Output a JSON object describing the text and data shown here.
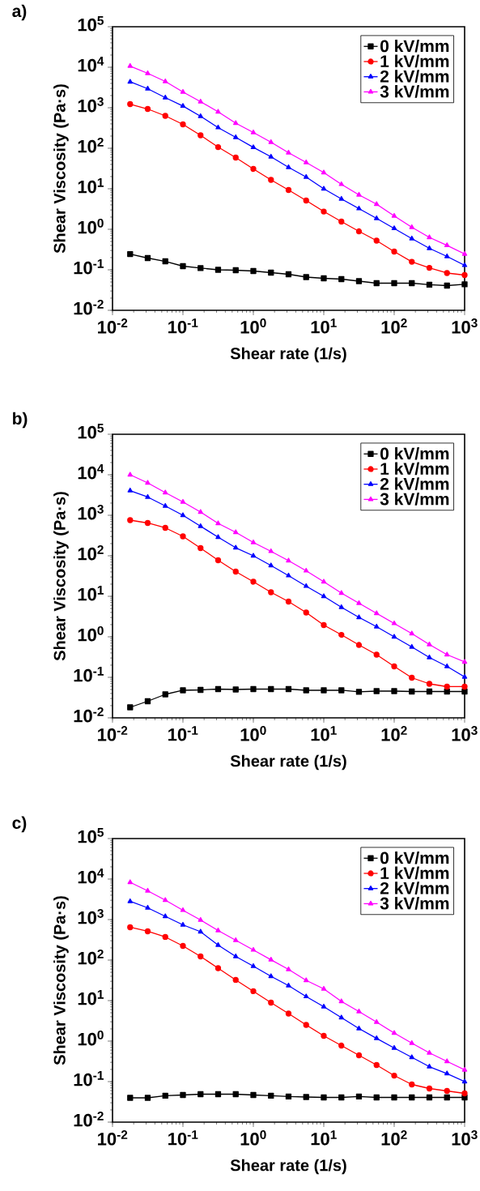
{
  "chart_data": [
    {
      "type": "line",
      "title": "a)",
      "xlabel": "Shear rate (1/s)",
      "ylabel": "Shear Viscosity (Pa·s)",
      "log": "xy",
      "legend": "top right",
      "x": [
        0.0178,
        0.0316,
        0.0562,
        0.1,
        0.178,
        0.316,
        0.562,
        1,
        1.78,
        3.16,
        5.62,
        10,
        17.8,
        31.6,
        56.2,
        100,
        178,
        316,
        562,
        1000
      ],
      "xlim": [
        0.01,
        1000
      ],
      "ylim": [
        0.01,
        100000
      ],
      "xticks": [
        {
          "value": 0.01,
          "label": "10$^{-2}$"
        },
        {
          "value": 0.1,
          "label": "10$^{-1}$"
        },
        {
          "value": 1,
          "label": "10$^{0}$"
        },
        {
          "value": 10,
          "label": "10$^{1}$"
        },
        {
          "value": 100,
          "label": "10$^{2}$"
        },
        {
          "value": 1000,
          "label": "10$^{3}$"
        }
      ],
      "yticks": [
        {
          "value": 0.01,
          "label": "10$^{-2}$"
        },
        {
          "value": 0.1,
          "label": "10$^{-1}$"
        },
        {
          "value": 1,
          "label": "10$^{0}$"
        },
        {
          "value": 10,
          "label": "10$^{1}$"
        },
        {
          "value": 100,
          "label": "10$^{2}$"
        },
        {
          "value": 1000,
          "label": "10$^{3}$"
        },
        {
          "value": 10000,
          "label": "10$^{4}$"
        },
        {
          "value": 100000,
          "label": "10$^{5}$"
        }
      ],
      "series": [
        {
          "name": "0 kV/mm",
          "color": "#000000",
          "marker": "square",
          "values": [
            0.245,
            0.195,
            0.162,
            0.123,
            0.11,
            0.1,
            0.0977,
            0.0933,
            0.0851,
            0.0776,
            0.0661,
            0.0617,
            0.0589,
            0.0525,
            0.0468,
            0.0468,
            0.0468,
            0.0427,
            0.0407,
            0.0437
          ]
        },
        {
          "name": "1 kV/mm",
          "color": "#ff0000",
          "marker": "circle",
          "values": [
            1230,
            933,
            631,
            389,
            209,
            107,
            58.9,
            30.9,
            16.6,
            9.33,
            5.13,
            2.75,
            1.55,
            0.891,
            0.525,
            0.282,
            0.158,
            0.112,
            0.0832,
            0.0741
          ]
        },
        {
          "name": "2 kV/mm",
          "color": "#0000ff",
          "marker": "triangle",
          "values": [
            4370,
            2950,
            1780,
            1100,
            617,
            324,
            186,
            105,
            61.7,
            33.9,
            19.5,
            10,
            5.62,
            3.24,
            1.86,
            1.05,
            0.589,
            0.339,
            0.214,
            0.129
          ]
        },
        {
          "name": "3 kV/mm",
          "color": "#ff00ff",
          "marker": "triangle",
          "values": [
            10700,
            7080,
            4470,
            2450,
            1410,
            794,
            417,
            245,
            141,
            77.6,
            44.7,
            25.1,
            12.9,
            7.08,
            4.17,
            2.14,
            1.12,
            0.63,
            0.4,
            0.245
          ]
        }
      ]
    },
    {
      "type": "line",
      "title": "b)",
      "xlabel": "Shear rate (1/s)",
      "ylabel": "Shear Viscosity (Pa·s)",
      "log": "xy",
      "legend": "top right",
      "x": [
        0.0178,
        0.0316,
        0.0562,
        0.1,
        0.178,
        0.316,
        0.562,
        1,
        1.78,
        3.16,
        5.62,
        10,
        17.8,
        31.6,
        56.2,
        100,
        178,
        316,
        562,
        1000
      ],
      "xlim": [
        0.01,
        1000
      ],
      "ylim": [
        0.01,
        100000
      ],
      "xticks": [
        {
          "value": 0.01,
          "label": "10$^{-2}$"
        },
        {
          "value": 0.1,
          "label": "10$^{-1}$"
        },
        {
          "value": 1,
          "label": "10$^{0}$"
        },
        {
          "value": 10,
          "label": "10$^{1}$"
        },
        {
          "value": 100,
          "label": "10$^{2}$"
        },
        {
          "value": 1000,
          "label": "10$^{3}$"
        }
      ],
      "yticks": [
        {
          "value": 0.01,
          "label": "10$^{-2}$"
        },
        {
          "value": 0.1,
          "label": "10$^{-1}$"
        },
        {
          "value": 1,
          "label": "10$^{0}$"
        },
        {
          "value": 10,
          "label": "10$^{1}$"
        },
        {
          "value": 100,
          "label": "10$^{2}$"
        },
        {
          "value": 1000,
          "label": "10$^{3}$"
        },
        {
          "value": 10000,
          "label": "10$^{4}$"
        },
        {
          "value": 100000,
          "label": "10$^{5}$"
        }
      ],
      "series": [
        {
          "name": "0 kV/mm",
          "color": "#000000",
          "marker": "square",
          "values": [
            0.0182,
            0.0257,
            0.038,
            0.0479,
            0.049,
            0.0513,
            0.0501,
            0.0513,
            0.0513,
            0.0513,
            0.0479,
            0.0479,
            0.0479,
            0.0437,
            0.0457,
            0.0457,
            0.0447,
            0.0447,
            0.0447,
            0.0447
          ]
        },
        {
          "name": "1 kV/mm",
          "color": "#ff0000",
          "marker": "circle",
          "values": [
            759,
            646,
            490,
            302,
            155,
            77.6,
            40.7,
            22.9,
            12.6,
            7.41,
            3.98,
            1.95,
            1.12,
            0.631,
            0.363,
            0.186,
            0.0977,
            0.0692,
            0.0589,
            0.0589
          ]
        },
        {
          "name": "2 kV/mm",
          "color": "#0000ff",
          "marker": "triangle",
          "values": [
            4070,
            2820,
            1700,
            1000,
            537,
            288,
            158,
            100,
            57.5,
            32.4,
            17.8,
            10,
            5.37,
            3.02,
            1.78,
            1.0,
            0.562,
            0.309,
            0.186,
            0.102
          ]
        },
        {
          "name": "3 kV/mm",
          "color": "#ff00ff",
          "marker": "triangle",
          "values": [
            10000,
            6310,
            3630,
            2140,
            1200,
            631,
            380,
            214,
            129,
            75.9,
            42.7,
            22.9,
            12,
            6.76,
            3.8,
            2.14,
            1.2,
            0.646,
            0.363,
            0.24
          ]
        }
      ]
    },
    {
      "type": "line",
      "title": "c)",
      "xlabel": "Shear rate (1/s)",
      "ylabel": "Shear Viscosity (Pa·s)",
      "log": "xy",
      "legend": "top right",
      "x": [
        0.0178,
        0.0316,
        0.0562,
        0.1,
        0.178,
        0.316,
        0.562,
        1,
        1.78,
        3.16,
        5.62,
        10,
        17.8,
        31.6,
        56.2,
        100,
        178,
        316,
        562,
        1000
      ],
      "xlim": [
        0.01,
        1000
      ],
      "ylim": [
        0.01,
        100000
      ],
      "xticks": [
        {
          "value": 0.01,
          "label": "10$^{-2}$"
        },
        {
          "value": 0.1,
          "label": "10$^{-1}$"
        },
        {
          "value": 1,
          "label": "10$^{0}$"
        },
        {
          "value": 10,
          "label": "10$^{1}$"
        },
        {
          "value": 100,
          "label": "10$^{2}$"
        },
        {
          "value": 1000,
          "label": "10$^{3}$"
        }
      ],
      "yticks": [
        {
          "value": 0.01,
          "label": "10$^{-2}$"
        },
        {
          "value": 0.1,
          "label": "10$^{-1}$"
        },
        {
          "value": 1,
          "label": "10$^{0}$"
        },
        {
          "value": 10,
          "label": "10$^{1}$"
        },
        {
          "value": 100,
          "label": "10$^{2}$"
        },
        {
          "value": 1000,
          "label": "10$^{3}$"
        },
        {
          "value": 10000,
          "label": "10$^{4}$"
        },
        {
          "value": 100000,
          "label": "10$^{5}$"
        }
      ],
      "series": [
        {
          "name": "0 kV/mm",
          "color": "#000000",
          "marker": "square",
          "values": [
            0.0398,
            0.0398,
            0.0447,
            0.0468,
            0.049,
            0.049,
            0.049,
            0.0468,
            0.0447,
            0.0427,
            0.0417,
            0.0407,
            0.0407,
            0.0427,
            0.0407,
            0.0407,
            0.0407,
            0.0407,
            0.0407,
            0.0407
          ]
        },
        {
          "name": "1 kV/mm",
          "color": "#ff0000",
          "marker": "circle",
          "values": [
            646,
            513,
            372,
            224,
            123,
            63.1,
            32.4,
            17,
            8.91,
            4.79,
            2.51,
            1.35,
            0.776,
            0.447,
            0.257,
            0.141,
            0.0851,
            0.0676,
            0.0589,
            0.0513
          ]
        },
        {
          "name": "2 kV/mm",
          "color": "#0000ff",
          "marker": "triangle",
          "values": [
            2820,
            1950,
            1200,
            741,
            501,
            234,
            123,
            70.8,
            39.8,
            23.4,
            12.6,
            7.08,
            3.8,
            2.04,
            1.17,
            0.676,
            0.398,
            0.234,
            0.158,
            0.1
          ]
        },
        {
          "name": "3 kV/mm",
          "color": "#ff00ff",
          "marker": "triangle",
          "values": [
            8320,
            5130,
            3020,
            1700,
            977,
            537,
            309,
            178,
            102,
            58.9,
            31.6,
            19.5,
            9.55,
            5.37,
            2.95,
            1.58,
            0.891,
            0.513,
            0.316,
            0.195
          ]
        }
      ]
    }
  ]
}
